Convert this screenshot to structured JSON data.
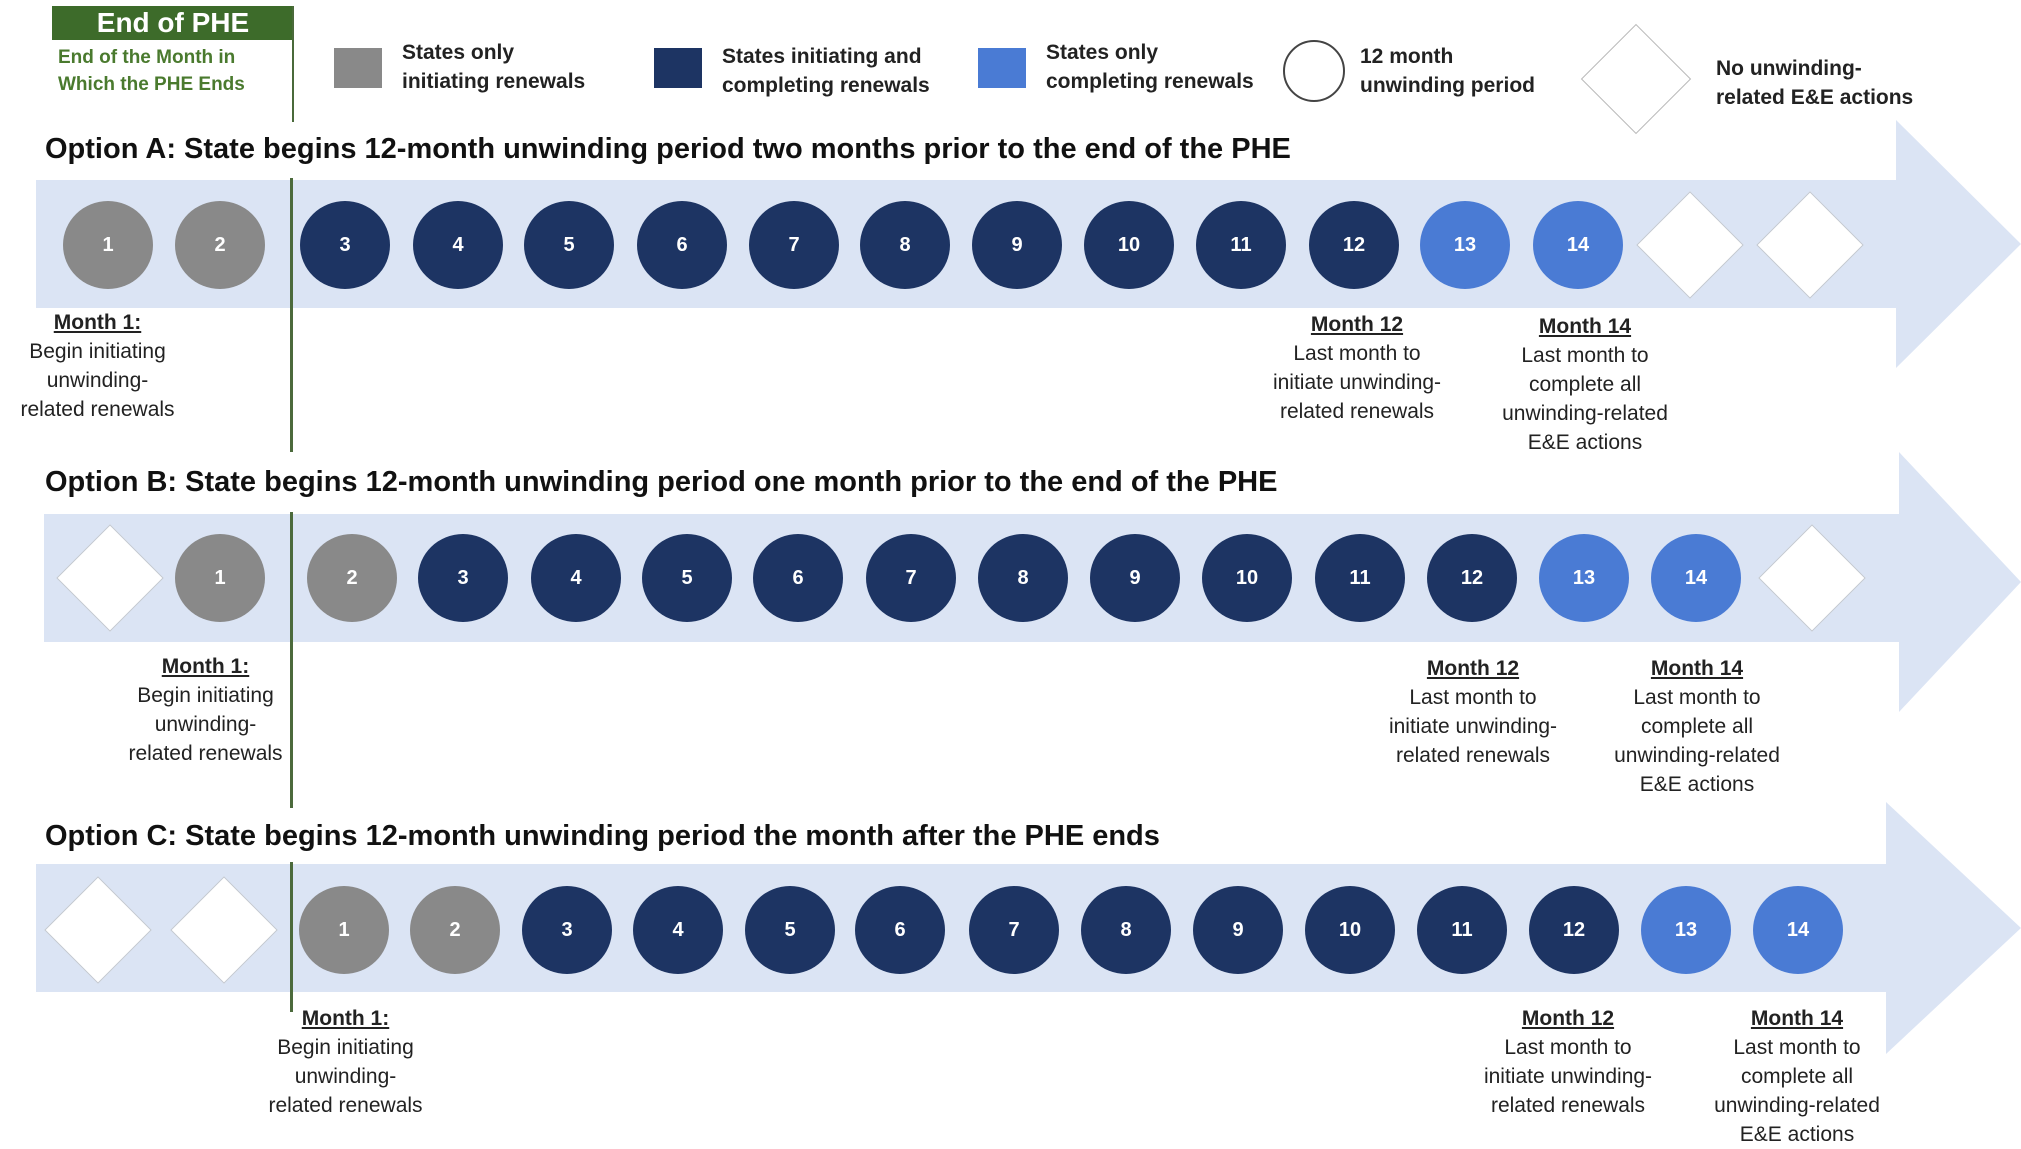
{
  "legend": {
    "phe_title": "End of PHE",
    "phe_subtitle_1": "End of the Month in",
    "phe_subtitle_2": "Which the PHE Ends",
    "grey_1": "States only",
    "grey_2": "initiating renewals",
    "dark_1": "States initiating and",
    "dark_2": "completing renewals",
    "light_1": "States only",
    "light_2": "completing renewals",
    "circle_1": "12 month",
    "circle_2": "unwinding period",
    "diamond_1": "No unwinding-",
    "diamond_2": "related E&E actions",
    "colors": {
      "grey": "#898989",
      "dark": "#1d3463",
      "light": "#4a7bd4",
      "phe_green": "#3d6b2a",
      "band": "#dbe4f4"
    }
  },
  "options": [
    {
      "title": "Option A: State begins 12-month unwinding period two months prior to the end of the PHE",
      "months": [
        {
          "label": "1",
          "kind": "grey"
        },
        {
          "label": "2",
          "kind": "grey"
        },
        {
          "label": "3",
          "kind": "dark"
        },
        {
          "label": "4",
          "kind": "dark"
        },
        {
          "label": "5",
          "kind": "dark"
        },
        {
          "label": "6",
          "kind": "dark"
        },
        {
          "label": "7",
          "kind": "dark"
        },
        {
          "label": "8",
          "kind": "dark"
        },
        {
          "label": "9",
          "kind": "dark"
        },
        {
          "label": "10",
          "kind": "dark"
        },
        {
          "label": "11",
          "kind": "dark"
        },
        {
          "label": "12",
          "kind": "dark"
        },
        {
          "label": "13",
          "kind": "light"
        },
        {
          "label": "14",
          "kind": "light"
        },
        {
          "label": "",
          "kind": "none"
        },
        {
          "label": "",
          "kind": "none"
        }
      ],
      "ann_start": {
        "head": "Month 1:",
        "l1": "Begin initiating",
        "l2": "unwinding-",
        "l3": "related renewals"
      },
      "ann_12": {
        "head": "Month 12",
        "l1": "Last month to",
        "l2": "initiate unwinding-",
        "l3": "related renewals"
      },
      "ann_14": {
        "head": "Month 14",
        "l1": "Last month to",
        "l2": "complete all",
        "l3": "unwinding-related",
        "l4": "E&E actions"
      }
    },
    {
      "title": "Option B: State begins 12-month unwinding period one month prior to the end of the PHE",
      "months": [
        {
          "label": "",
          "kind": "none"
        },
        {
          "label": "1",
          "kind": "grey"
        },
        {
          "label": "2",
          "kind": "grey"
        },
        {
          "label": "3",
          "kind": "dark"
        },
        {
          "label": "4",
          "kind": "dark"
        },
        {
          "label": "5",
          "kind": "dark"
        },
        {
          "label": "6",
          "kind": "dark"
        },
        {
          "label": "7",
          "kind": "dark"
        },
        {
          "label": "8",
          "kind": "dark"
        },
        {
          "label": "9",
          "kind": "dark"
        },
        {
          "label": "10",
          "kind": "dark"
        },
        {
          "label": "11",
          "kind": "dark"
        },
        {
          "label": "12",
          "kind": "dark"
        },
        {
          "label": "13",
          "kind": "light"
        },
        {
          "label": "14",
          "kind": "light"
        },
        {
          "label": "",
          "kind": "none"
        }
      ],
      "ann_start": {
        "head": "Month 1:",
        "l1": "Begin initiating",
        "l2": "unwinding-",
        "l3": "related renewals"
      },
      "ann_12": {
        "head": "Month 12",
        "l1": "Last month to",
        "l2": "initiate unwinding-",
        "l3": "related renewals"
      },
      "ann_14": {
        "head": "Month 14",
        "l1": "Last month to",
        "l2": "complete all",
        "l3": "unwinding-related",
        "l4": "E&E actions"
      }
    },
    {
      "title": "Option C: State begins 12-month unwinding period the month after the PHE ends",
      "months": [
        {
          "label": "",
          "kind": "none"
        },
        {
          "label": "",
          "kind": "none"
        },
        {
          "label": "1",
          "kind": "grey"
        },
        {
          "label": "2",
          "kind": "grey"
        },
        {
          "label": "3",
          "kind": "dark"
        },
        {
          "label": "4",
          "kind": "dark"
        },
        {
          "label": "5",
          "kind": "dark"
        },
        {
          "label": "6",
          "kind": "dark"
        },
        {
          "label": "7",
          "kind": "dark"
        },
        {
          "label": "8",
          "kind": "dark"
        },
        {
          "label": "9",
          "kind": "dark"
        },
        {
          "label": "10",
          "kind": "dark"
        },
        {
          "label": "11",
          "kind": "dark"
        },
        {
          "label": "12",
          "kind": "dark"
        },
        {
          "label": "13",
          "kind": "light"
        },
        {
          "label": "14",
          "kind": "light"
        }
      ],
      "ann_start": {
        "head": "Month 1:",
        "l1": "Begin initiating",
        "l2": "unwinding-",
        "l3": "related renewals"
      },
      "ann_12": {
        "head": "Month 12",
        "l1": "Last month to",
        "l2": "initiate unwinding-",
        "l3": "related renewals"
      },
      "ann_14": {
        "head": "Month 14",
        "l1": "Last month to",
        "l2": "complete all",
        "l3": "unwinding-related",
        "l4": "E&E actions"
      }
    }
  ]
}
